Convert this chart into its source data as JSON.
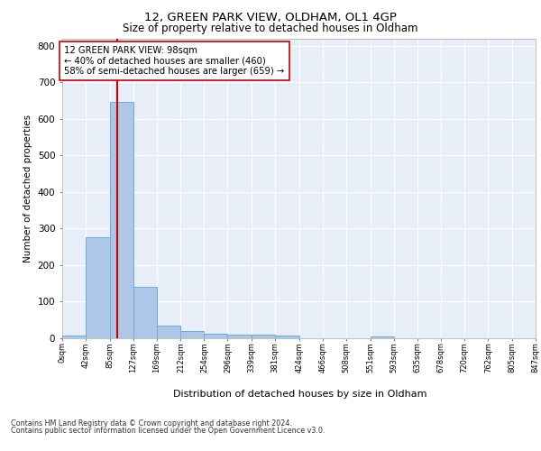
{
  "title": "12, GREEN PARK VIEW, OLDHAM, OL1 4GP",
  "subtitle": "Size of property relative to detached houses in Oldham",
  "xlabel": "Distribution of detached houses by size in Oldham",
  "ylabel": "Number of detached properties",
  "bar_values": [
    8,
    275,
    645,
    140,
    35,
    20,
    12,
    10,
    10,
    8,
    0,
    0,
    0,
    6,
    0,
    0,
    0,
    0,
    0,
    0
  ],
  "bin_edges": [
    0,
    42,
    85,
    127,
    169,
    212,
    254,
    296,
    339,
    381,
    424,
    466,
    508,
    551,
    593,
    635,
    678,
    720,
    762,
    805,
    847
  ],
  "tick_labels": [
    "0sqm",
    "42sqm",
    "85sqm",
    "127sqm",
    "169sqm",
    "212sqm",
    "254sqm",
    "296sqm",
    "339sqm",
    "381sqm",
    "424sqm",
    "466sqm",
    "508sqm",
    "551sqm",
    "593sqm",
    "635sqm",
    "678sqm",
    "720sqm",
    "762sqm",
    "805sqm",
    "847sqm"
  ],
  "bar_color": "#aec6e8",
  "bar_edge_color": "#6aaed6",
  "vline_x": 98,
  "vline_color": "#cc0000",
  "annotation_text": "12 GREEN PARK VIEW: 98sqm\n← 40% of detached houses are smaller (460)\n58% of semi-detached houses are larger (659) →",
  "annotation_box_color": "#ffffff",
  "annotation_box_edge": "#cc0000",
  "ylim": [
    0,
    820
  ],
  "yticks": [
    0,
    100,
    200,
    300,
    400,
    500,
    600,
    700,
    800
  ],
  "background_color": "#e8eef8",
  "grid_color": "#ffffff",
  "footer_line1": "Contains HM Land Registry data © Crown copyright and database right 2024.",
  "footer_line2": "Contains public sector information licensed under the Open Government Licence v3.0."
}
